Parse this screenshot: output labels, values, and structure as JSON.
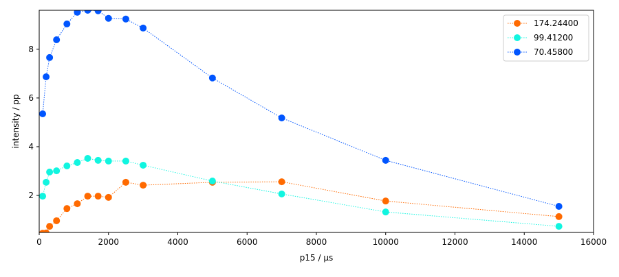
{
  "chart_data": {
    "type": "line",
    "title": "",
    "xlabel": "p15 / µs",
    "ylabel": "intensity / pp",
    "xlim": [
      0,
      16000
    ],
    "ylim": [
      0.48,
      9.6
    ],
    "xticks": [
      0,
      2000,
      4000,
      6000,
      8000,
      10000,
      12000,
      14000,
      16000
    ],
    "yticks": [
      2,
      4,
      6,
      8
    ],
    "grid": false,
    "legend_position": "top-right",
    "x": [
      100,
      200,
      300,
      500,
      800,
      1100,
      1400,
      1700,
      2000,
      2500,
      3000,
      5000,
      7000,
      10000,
      15000
    ],
    "series": [
      {
        "name": "174.24400",
        "color": "#ff6a00",
        "values": [
          0.45,
          0.46,
          0.73,
          0.96,
          1.46,
          1.66,
          1.97,
          1.97,
          1.92,
          2.54,
          2.42,
          2.54,
          2.56,
          1.77,
          1.13
        ]
      },
      {
        "name": "99.41200",
        "color": "#11f5e0",
        "values": [
          1.97,
          2.54,
          2.96,
          3.01,
          3.21,
          3.35,
          3.52,
          3.44,
          3.41,
          3.41,
          3.24,
          2.59,
          2.06,
          1.32,
          0.73
        ]
      },
      {
        "name": "70.45800",
        "color": "#0055ff",
        "values": [
          5.35,
          6.87,
          7.66,
          8.39,
          9.04,
          9.52,
          9.6,
          9.58,
          9.27,
          9.24,
          8.87,
          6.82,
          5.18,
          3.44,
          1.55
        ]
      }
    ]
  }
}
